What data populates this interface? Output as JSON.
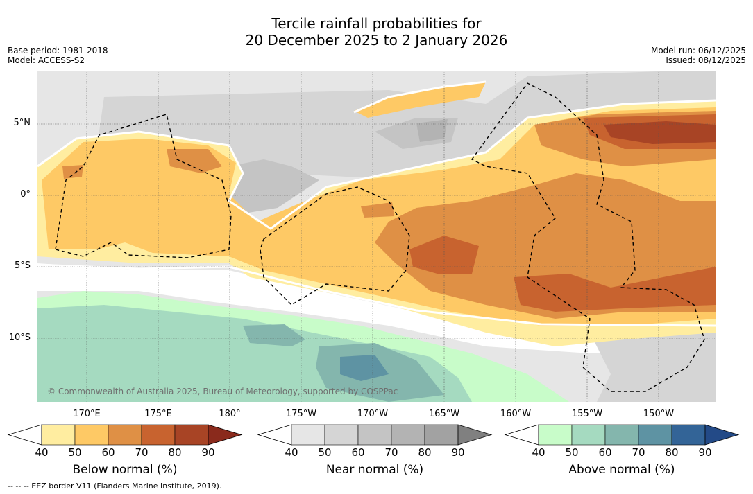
{
  "title_line1": "Tercile rainfall probabilities for",
  "title_line2": "20 December 2025 to 2 January 2026",
  "base_period": "Base period: 1981-2018",
  "model": "Model: ACCESS-S2",
  "model_run": "Model run: 06/12/2025",
  "issued": "Issued: 08/12/2025",
  "lat_labels": [
    "5°N",
    "0°",
    "5°S",
    "10°S"
  ],
  "lon_labels": [
    "170°E",
    "175°E",
    "180°",
    "175°W",
    "170°W",
    "165°W",
    "160°W",
    "155°W",
    "150°W"
  ],
  "copyright": "© Commonwealth of Australia 2025, Bureau of Meteorology, supported by COSPPac",
  "footer": "-- -- -- EEZ border V11 (Flanders Marine Institute, 2019).",
  "colorbars": [
    {
      "title": "Below normal (%)",
      "ticks": [
        "40",
        "50",
        "60",
        "70",
        "80",
        "90"
      ],
      "colors": [
        "#ffffff",
        "#ffeda0",
        "#fec965",
        "#df9045",
        "#c8632f",
        "#a84425",
        "#8a2a1c"
      ]
    },
    {
      "title": "Near normal (%)",
      "ticks": [
        "40",
        "50",
        "60",
        "70",
        "80",
        "90"
      ],
      "colors": [
        "#ffffff",
        "#e6e6e6",
        "#d5d5d5",
        "#c4c4c4",
        "#b3b3b3",
        "#a2a2a2",
        "#808080"
      ]
    },
    {
      "title": "Above normal (%)",
      "ticks": [
        "40",
        "50",
        "60",
        "70",
        "80",
        "90"
      ],
      "colors": [
        "#ffffff",
        "#c8fcc9",
        "#a5dac0",
        "#84b6ad",
        "#5e93a3",
        "#336497",
        "#234a87"
      ]
    }
  ]
}
